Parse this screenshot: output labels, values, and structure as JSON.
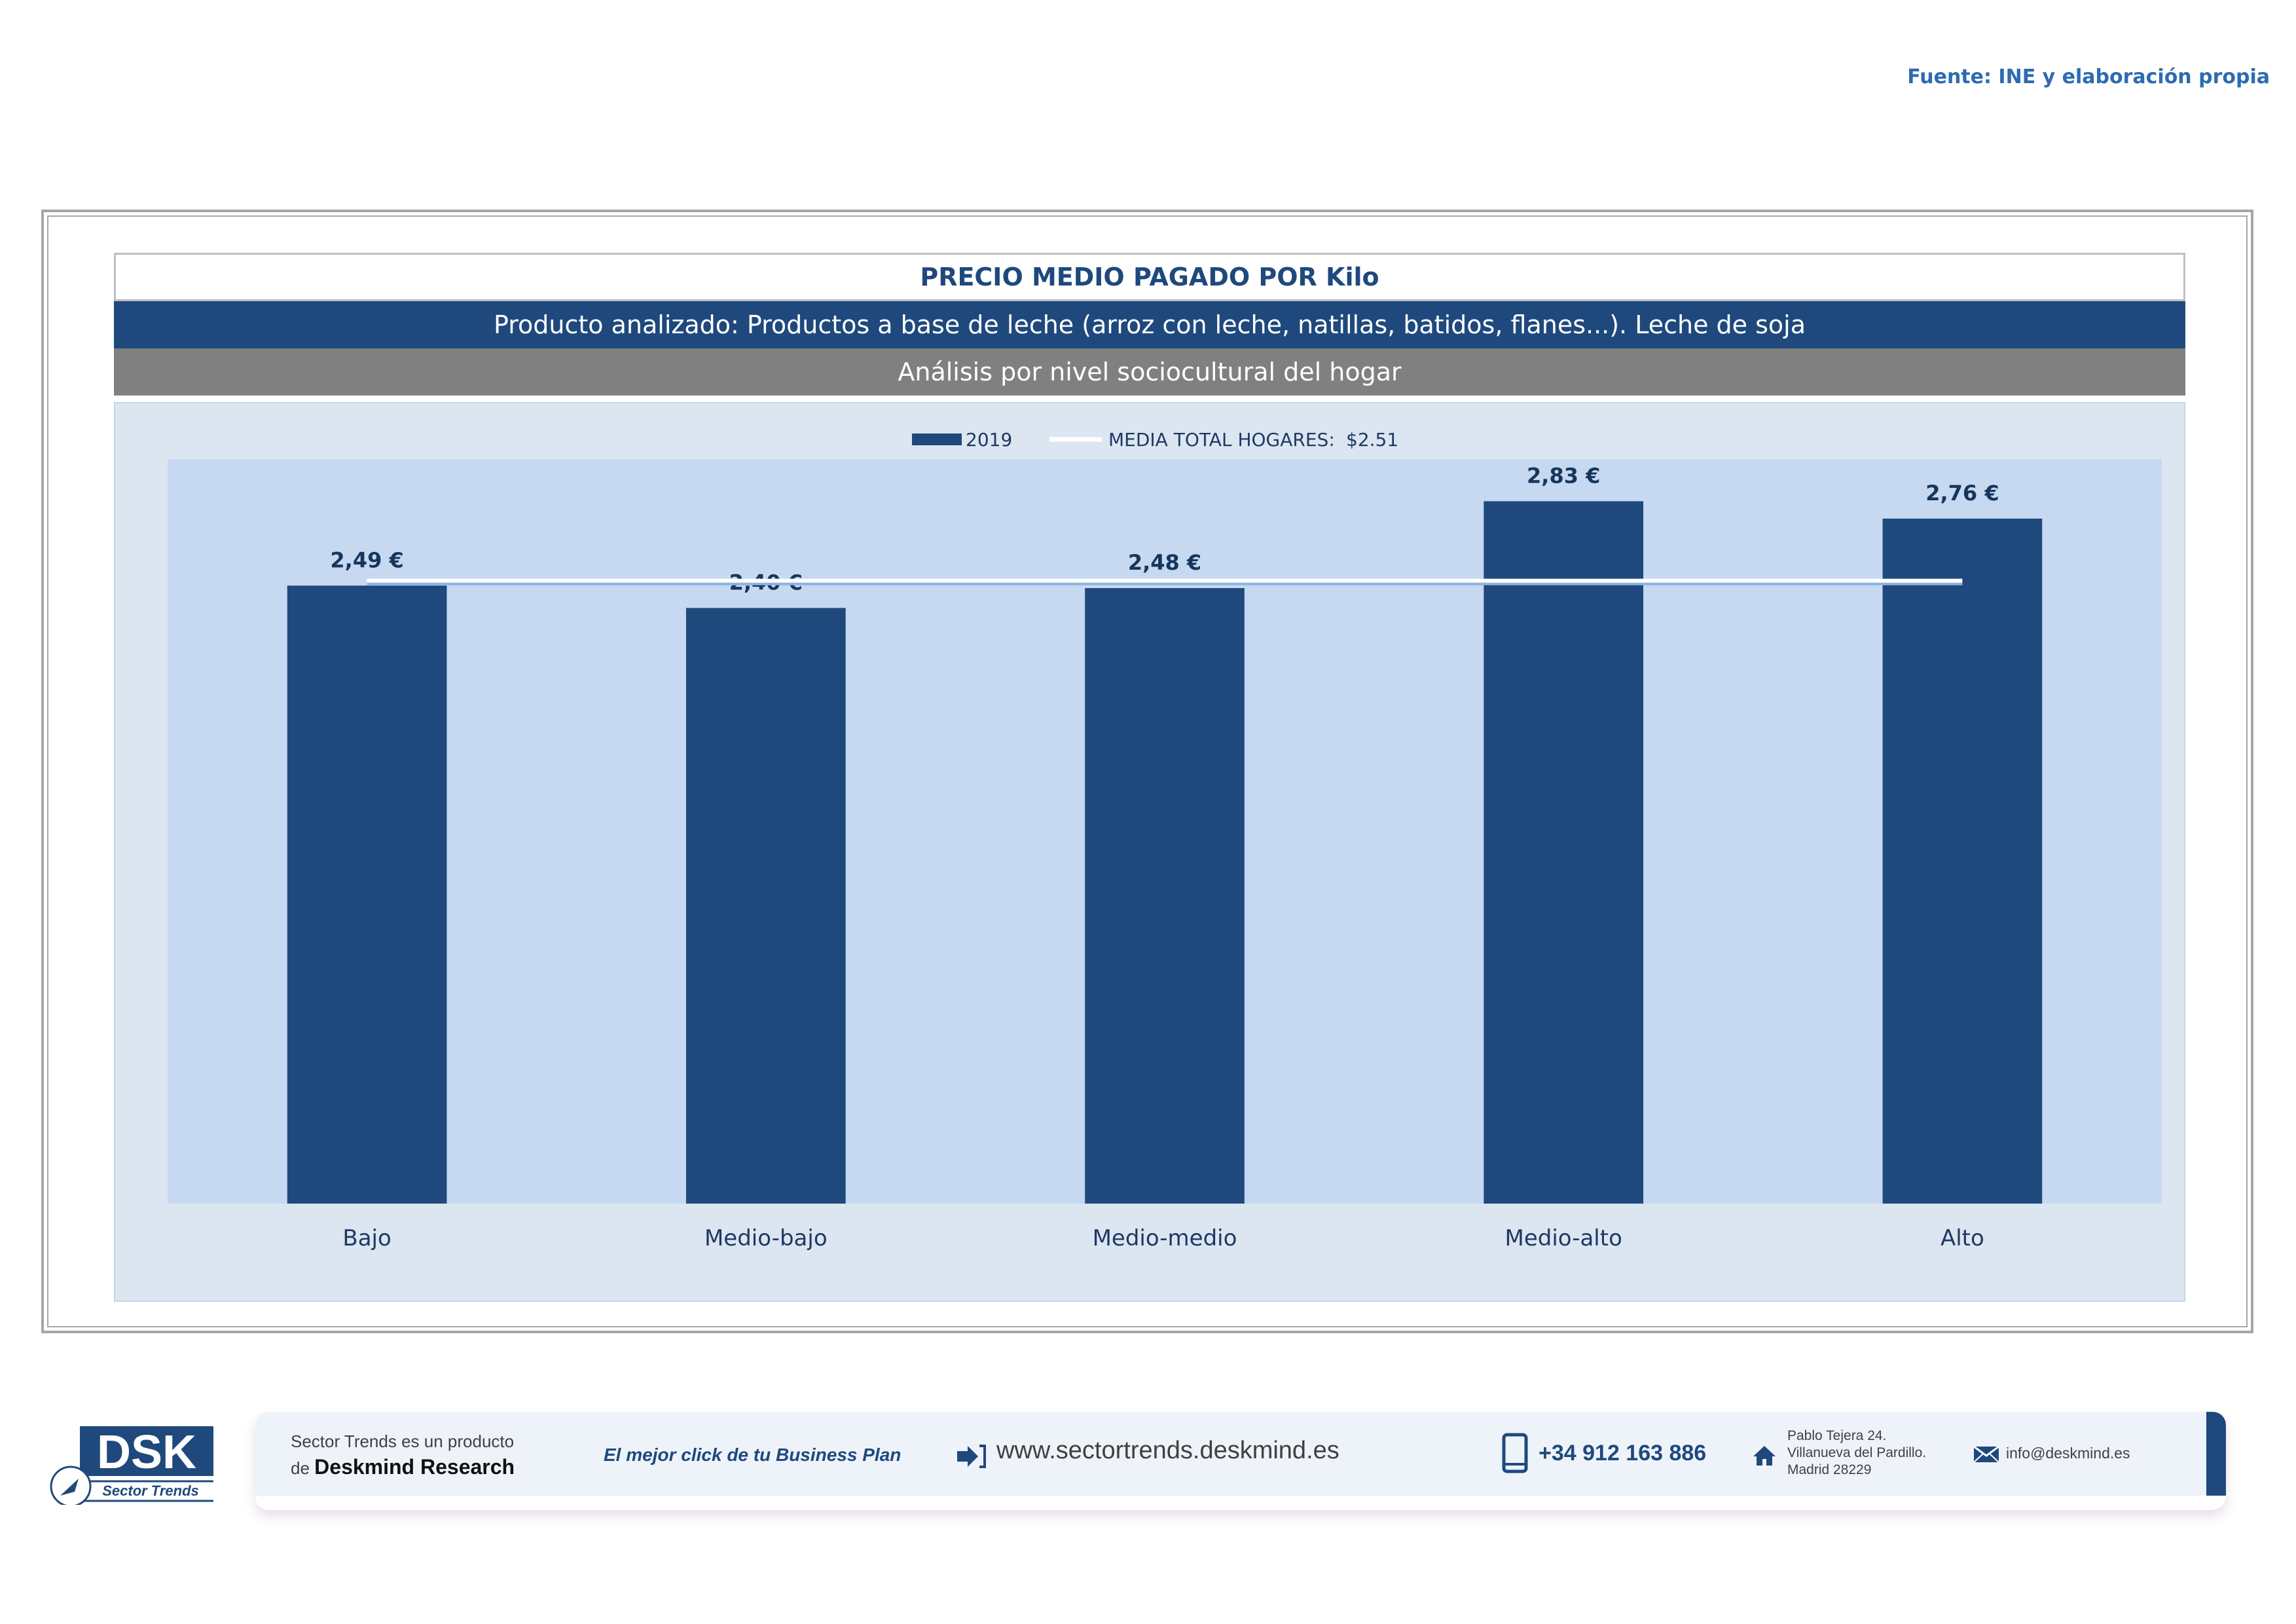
{
  "source": "Fuente: INE y elaboración propia",
  "header": {
    "title": "PRECIO MEDIO PAGADO POR Kilo",
    "product": "Producto analizado: Productos a base de leche (arroz con leche, natillas, batidos, flanes...). Leche de soja",
    "analysis": "Análisis por nivel sociocultural del hogar"
  },
  "chart_data": {
    "type": "bar",
    "categories": [
      "Bajo",
      "Medio-bajo",
      "Medio-medio",
      "Medio-alto",
      "Alto"
    ],
    "series": [
      {
        "name": "2019",
        "values": [
          2.49,
          2.4,
          2.48,
          2.83,
          2.76
        ],
        "color": "#1f497d"
      }
    ],
    "data_labels": [
      "2,49 €",
      "2,40 €",
      "2,48 €",
      "2,83 €",
      "2,76 €"
    ],
    "reference_line": {
      "name": "MEDIA TOTAL  HOGARES:",
      "value_label": "$2.51",
      "value": 2.51,
      "color": "#ffffff"
    },
    "ylim": [
      0,
      3.0
    ],
    "grid": false,
    "legend_position": "top-center",
    "colors": {
      "plot_bg": "#c6d9f1",
      "area_bg": "#dce6f1",
      "bar": "#1f497d",
      "label": "#17365d"
    }
  },
  "footer": {
    "logo_text": "DSK",
    "logo_sub": "Sector Trends",
    "product_line1": "Sector Trends es un producto",
    "product_line2_prefix": "de",
    "product_line2_brand": "Deskmind Research",
    "slogan": "El mejor click de tu Business Plan",
    "website": "www.sectortrends.deskmind.es",
    "phone": "+34 912 163 886",
    "address_line1": "Pablo Tejera 24.",
    "address_line2": "Villanueva del Pardillo.",
    "address_line3": "Madrid 28229",
    "email": "info@deskmind.es"
  }
}
